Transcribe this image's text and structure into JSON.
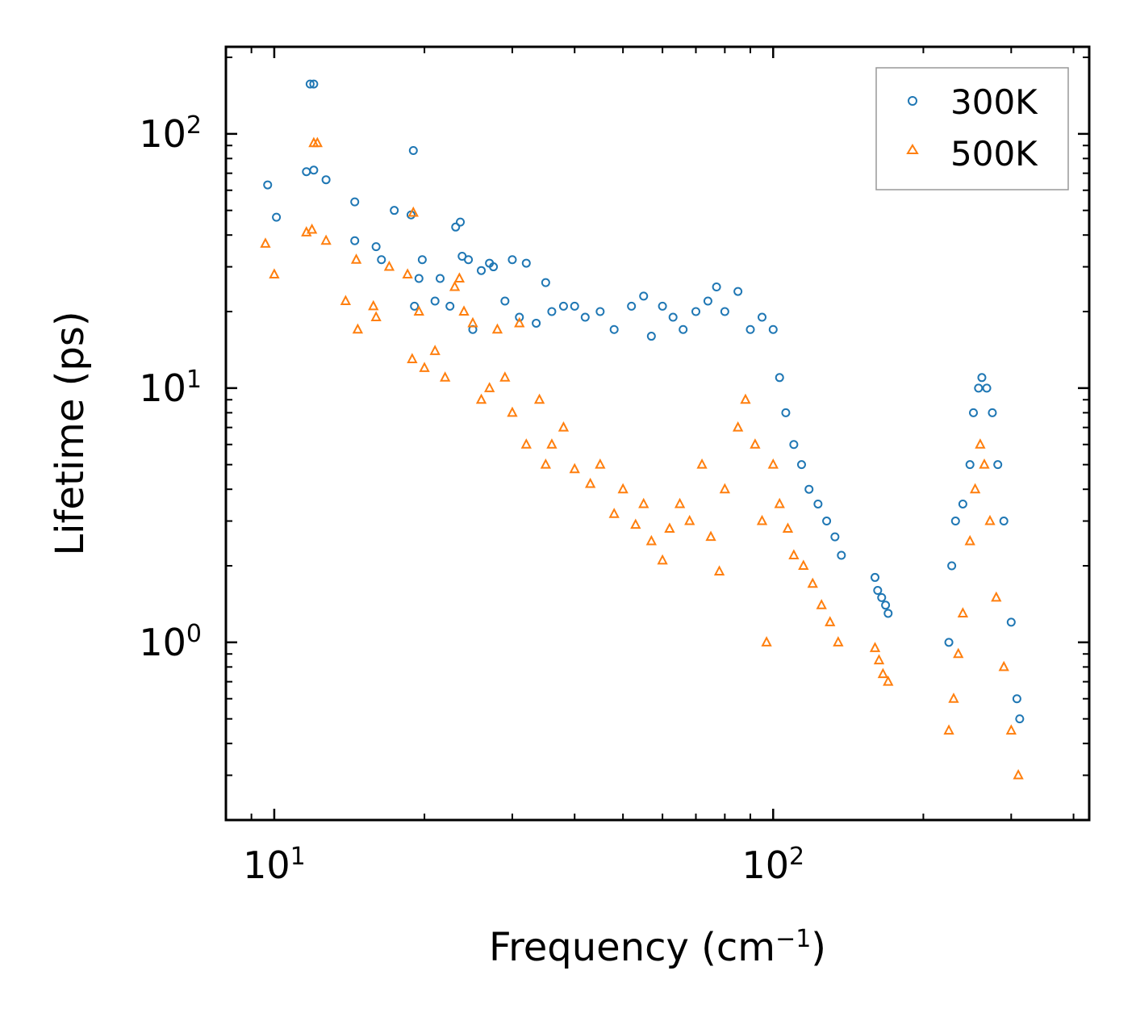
{
  "chart_data": {
    "type": "scatter",
    "title": "",
    "xlabel": "Frequency (cm",
    "xlabel_superscript": "−1",
    "xlabel_suffix": ")",
    "ylabel": "Lifetime (ps)",
    "xscale": "log",
    "yscale": "log",
    "xlim": [
      8,
      430
    ],
    "ylim": [
      0.2,
      220
    ],
    "x_tick_labels": [
      {
        "value": 10,
        "base": "10",
        "exp": "1"
      },
      {
        "value": 100,
        "base": "10",
        "exp": "2"
      }
    ],
    "y_tick_labels": [
      {
        "value": 1,
        "base": "10",
        "exp": "0"
      },
      {
        "value": 10,
        "base": "10",
        "exp": "1"
      },
      {
        "value": 100,
        "base": "10",
        "exp": "2"
      }
    ],
    "legend_position": "top-right",
    "series": [
      {
        "name": "300K",
        "marker": "circle",
        "color": "#1f77b4",
        "points": [
          [
            9.7,
            63
          ],
          [
            10.1,
            47
          ],
          [
            11.6,
            71
          ],
          [
            11.8,
            157
          ],
          [
            12.0,
            157
          ],
          [
            12.0,
            72
          ],
          [
            12.7,
            66
          ],
          [
            14.5,
            54
          ],
          [
            14.5,
            38
          ],
          [
            16.0,
            36
          ],
          [
            16.4,
            32
          ],
          [
            17.4,
            50
          ],
          [
            18.8,
            48
          ],
          [
            19.0,
            86
          ],
          [
            19.1,
            21
          ],
          [
            19.5,
            27
          ],
          [
            19.8,
            32
          ],
          [
            21.0,
            22
          ],
          [
            21.5,
            27
          ],
          [
            22.5,
            21
          ],
          [
            23.1,
            43
          ],
          [
            23.6,
            45
          ],
          [
            23.8,
            33
          ],
          [
            24.5,
            32
          ],
          [
            25.0,
            17
          ],
          [
            26.0,
            29
          ],
          [
            27.0,
            31
          ],
          [
            27.5,
            30
          ],
          [
            29.0,
            22
          ],
          [
            30.0,
            32
          ],
          [
            31.0,
            19
          ],
          [
            32.0,
            31
          ],
          [
            33.5,
            18
          ],
          [
            35.0,
            26
          ],
          [
            36.0,
            20
          ],
          [
            38.0,
            21
          ],
          [
            40.0,
            21
          ],
          [
            42.0,
            19
          ],
          [
            45.0,
            20
          ],
          [
            48.0,
            17
          ],
          [
            52.0,
            21
          ],
          [
            55.0,
            23
          ],
          [
            57.0,
            16
          ],
          [
            60.0,
            21
          ],
          [
            63.0,
            19
          ],
          [
            66.0,
            17
          ],
          [
            70.0,
            20
          ],
          [
            74.0,
            22
          ],
          [
            77.0,
            25
          ],
          [
            80.0,
            20
          ],
          [
            85.0,
            24
          ],
          [
            90.0,
            17
          ],
          [
            95.0,
            19
          ],
          [
            100.0,
            17
          ],
          [
            103.0,
            11
          ],
          [
            106.0,
            8
          ],
          [
            110.0,
            6
          ],
          [
            114.0,
            5
          ],
          [
            118.0,
            4
          ],
          [
            123.0,
            3.5
          ],
          [
            128.0,
            3
          ],
          [
            133.0,
            2.6
          ],
          [
            137.0,
            2.2
          ],
          [
            160.0,
            1.8
          ],
          [
            162.0,
            1.6
          ],
          [
            165.0,
            1.5
          ],
          [
            168.0,
            1.4
          ],
          [
            170.0,
            1.3
          ],
          [
            225.0,
            1.0
          ],
          [
            228.0,
            2.0
          ],
          [
            232.0,
            3.0
          ],
          [
            240.0,
            3.5
          ],
          [
            248.0,
            5
          ],
          [
            252.0,
            8
          ],
          [
            258.0,
            10
          ],
          [
            262.0,
            11
          ],
          [
            268.0,
            10
          ],
          [
            275.0,
            8
          ],
          [
            282.0,
            5
          ],
          [
            290.0,
            3
          ],
          [
            300.0,
            1.2
          ],
          [
            308.0,
            0.6
          ],
          [
            312.0,
            0.5
          ]
        ]
      },
      {
        "name": "500K",
        "marker": "triangle",
        "color": "#ff7f0e",
        "points": [
          [
            9.6,
            37
          ],
          [
            10.0,
            28
          ],
          [
            11.6,
            41
          ],
          [
            11.9,
            42
          ],
          [
            12.0,
            92
          ],
          [
            12.2,
            92
          ],
          [
            12.7,
            38
          ],
          [
            13.9,
            22
          ],
          [
            14.6,
            32
          ],
          [
            14.7,
            17
          ],
          [
            15.8,
            21
          ],
          [
            16.0,
            19
          ],
          [
            17.0,
            30
          ],
          [
            18.5,
            28
          ],
          [
            18.9,
            13
          ],
          [
            19.0,
            49
          ],
          [
            19.5,
            20
          ],
          [
            20.0,
            12
          ],
          [
            21.0,
            14
          ],
          [
            22.0,
            11
          ],
          [
            23.0,
            25
          ],
          [
            23.5,
            27
          ],
          [
            24.0,
            20
          ],
          [
            25.0,
            18
          ],
          [
            26.0,
            9
          ],
          [
            27.0,
            10
          ],
          [
            28.0,
            17
          ],
          [
            29.0,
            11
          ],
          [
            30.0,
            8
          ],
          [
            31.0,
            18
          ],
          [
            32.0,
            6
          ],
          [
            34.0,
            9
          ],
          [
            35.0,
            5
          ],
          [
            36.0,
            6
          ],
          [
            38.0,
            7
          ],
          [
            40.0,
            4.8
          ],
          [
            43.0,
            4.2
          ],
          [
            45.0,
            5
          ],
          [
            48.0,
            3.2
          ],
          [
            50.0,
            4
          ],
          [
            53.0,
            2.9
          ],
          [
            55.0,
            3.5
          ],
          [
            57.0,
            2.5
          ],
          [
            60.0,
            2.1
          ],
          [
            62.0,
            2.8
          ],
          [
            65.0,
            3.5
          ],
          [
            68.0,
            3.0
          ],
          [
            72.0,
            5
          ],
          [
            75.0,
            2.6
          ],
          [
            78.0,
            1.9
          ],
          [
            80.0,
            4
          ],
          [
            85.0,
            7
          ],
          [
            88.0,
            9
          ],
          [
            92.0,
            6
          ],
          [
            95.0,
            3
          ],
          [
            97.0,
            1.0
          ],
          [
            100.0,
            5
          ],
          [
            103.0,
            3.5
          ],
          [
            107.0,
            2.8
          ],
          [
            110.0,
            2.2
          ],
          [
            115.0,
            2
          ],
          [
            120.0,
            1.7
          ],
          [
            125.0,
            1.4
          ],
          [
            130.0,
            1.2
          ],
          [
            135.0,
            1.0
          ],
          [
            160.0,
            0.95
          ],
          [
            163.0,
            0.85
          ],
          [
            166.0,
            0.75
          ],
          [
            170.0,
            0.7
          ],
          [
            225.0,
            0.45
          ],
          [
            230.0,
            0.6
          ],
          [
            235.0,
            0.9
          ],
          [
            240.0,
            1.3
          ],
          [
            248.0,
            2.5
          ],
          [
            254.0,
            4
          ],
          [
            260.0,
            6
          ],
          [
            265.0,
            5
          ],
          [
            272.0,
            3
          ],
          [
            280.0,
            1.5
          ],
          [
            290.0,
            0.8
          ],
          [
            300.0,
            0.45
          ],
          [
            310.0,
            0.3
          ]
        ]
      }
    ]
  }
}
